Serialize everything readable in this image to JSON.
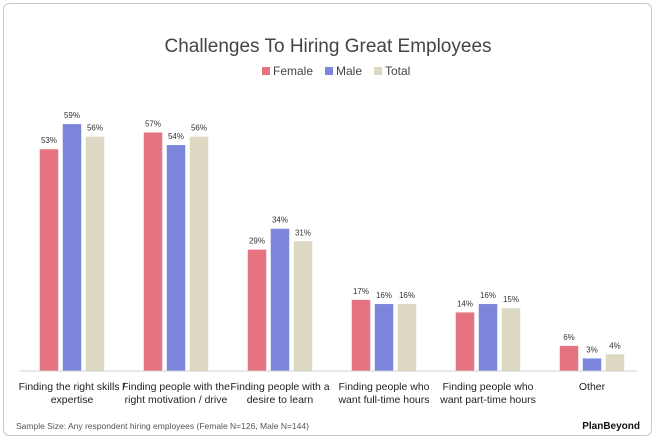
{
  "chart_data": {
    "type": "bar",
    "title": "Challenges To Hiring Great Employees",
    "categories": [
      [
        "Finding the right skills /",
        "expertise"
      ],
      [
        "Finding people with the",
        "right motivation / drive"
      ],
      [
        "Finding people with a",
        "desire to learn"
      ],
      [
        "Finding people who",
        "want full-time hours"
      ],
      [
        "Finding people who",
        "want part-time hours"
      ],
      [
        "Other"
      ]
    ],
    "series": [
      {
        "name": "Female",
        "color": "#E57380",
        "values": [
          53,
          57,
          29,
          17,
          14,
          6
        ],
        "labels": [
          "53%",
          "57%",
          "29%",
          "17%",
          "14%",
          "6%"
        ]
      },
      {
        "name": "Male",
        "color": "#7B86DB",
        "values": [
          59,
          54,
          34,
          16,
          16,
          3
        ],
        "labels": [
          "59%",
          "54%",
          "34%",
          "16%",
          "16%",
          "3%"
        ]
      },
      {
        "name": "Total",
        "color": "#DDD8C3",
        "values": [
          56,
          56,
          31,
          16,
          15,
          4
        ],
        "labels": [
          "56%",
          "56%",
          "31%",
          "16%",
          "15%",
          "4%"
        ]
      }
    ],
    "ylim": [
      0,
      65
    ],
    "legend_position": "top-center",
    "grid": false
  },
  "footer": {
    "sample": "Sample Size: Any respondent hiring employees (Female N=126, Male N=144)",
    "brand": "PlanBeyond"
  }
}
